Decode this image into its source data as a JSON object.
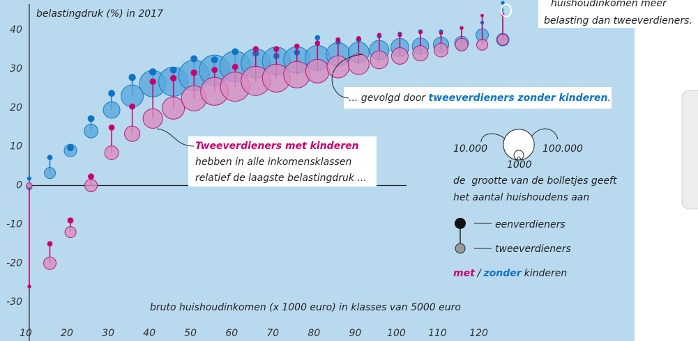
{
  "chart_data": {
    "type": "bubble",
    "y_label": "belastingdruk (%) in 2017",
    "x_label": "bruto huishoudinkomen (x 1000 euro) in klasses van 5000 euro",
    "x": [
      10,
      15,
      20,
      25,
      30,
      35,
      40,
      45,
      50,
      55,
      60,
      65,
      70,
      75,
      80,
      85,
      90,
      95,
      100,
      105,
      110,
      115,
      120,
      125
    ],
    "xlim": [
      10,
      157
    ],
    "ylim": [
      -40,
      47.7
    ],
    "xticks": [
      10,
      20,
      30,
      40,
      50,
      60,
      70,
      80,
      90,
      100,
      110,
      120
    ],
    "yticks": [
      -30,
      -20,
      -10,
      0,
      10,
      20,
      30,
      40
    ],
    "series": [
      {
        "color": "#5aa8dc",
        "stroke": "#1a7cc0",
        "values": [
          -0.4,
          3.2,
          9,
          14,
          19.4,
          23,
          26.2,
          26.7,
          28.3,
          29.6,
          30.6,
          31.4,
          32,
          32.3,
          32.8,
          33.7,
          34.2,
          34.8,
          35.5,
          35.8,
          36.2,
          36.6,
          38.7,
          37.5
        ],
        "sizes": [
          3300,
          13000,
          16500,
          20000,
          29000,
          52000,
          74000,
          90000,
          99000,
          99000,
          99000,
          90000,
          82000,
          74000,
          66000,
          59000,
          46000,
          40000,
          34000,
          29000,
          25000,
          20000,
          16500,
          16500
        ]
      },
      {
        "color": "#1173c3",
        "values": [
          1.8,
          7.2,
          9.7,
          17.2,
          23.7,
          27.8,
          29.2,
          29.7,
          32.6,
          32.3,
          34.4,
          34,
          33.3,
          34.2,
          38,
          36.9,
          37.5,
          38.4,
          39,
          39.6,
          39.6,
          40.5,
          41.9,
          47
        ],
        "sizes": [
          2000,
          3000,
          5000,
          5000,
          5000,
          5500,
          5500,
          5000,
          5000,
          5000,
          5000,
          4500,
          4000,
          4000,
          3000,
          3000,
          3000,
          2500,
          2000,
          2000,
          1800,
          1500,
          1500,
          1500
        ]
      },
      {
        "color": "#d98cbf",
        "stroke": "#b0207a",
        "values": [
          0,
          -20,
          -12,
          0,
          8.4,
          13.3,
          17.2,
          19.9,
          22.4,
          24.2,
          25.4,
          26.9,
          27.6,
          28.5,
          29.4,
          30.5,
          31.2,
          32.3,
          33.3,
          34,
          34.8,
          36.2,
          36.2,
          37.5
        ],
        "sizes": [
          3300,
          16500,
          13000,
          16500,
          20000,
          25000,
          40000,
          52000,
          66000,
          82000,
          90000,
          90000,
          82000,
          74000,
          59000,
          52000,
          46000,
          34000,
          29000,
          25000,
          20000,
          16500,
          13000,
          13000
        ]
      },
      {
        "color": "#c8006e",
        "values": [
          -26,
          -15,
          -9,
          2.3,
          14.9,
          20.3,
          26.7,
          27.6,
          29,
          29.7,
          30.5,
          35.1,
          35.1,
          35.8,
          36.6,
          37.5,
          37.8,
          38.7,
          38.7,
          39.4,
          39.2,
          40.5,
          43.7,
          44
        ],
        "sizes": [
          1500,
          3000,
          4000,
          4000,
          4000,
          4000,
          4500,
          4500,
          4500,
          4000,
          4000,
          3500,
          3500,
          3000,
          3000,
          2500,
          2500,
          2000,
          2000,
          1800,
          1500,
          1500,
          1200,
          1200
        ]
      }
    ],
    "annotations": [
      {
        "lines": [
          "huishoudinkomen meer",
          "belasting dan tweeverdieners."
        ]
      },
      {
        "parts": [
          "... gevolgd door ",
          "tweeverdieners zonder kinderen",
          "."
        ]
      },
      {
        "lines": [
          "Tweeverdieners met kinderen",
          "hebben in alle inkomensklassen",
          "relatief de laagste belastingdruk ..."
        ]
      }
    ],
    "legend": {
      "size_examples": [
        {
          "value": 10000,
          "label": "10.000"
        },
        1000,
        {
          "value": 100000,
          "label": "100.000"
        }
      ],
      "size_note": [
        "de  grootte van de bolletjes geeft",
        "het aantal huishoudens aan"
      ],
      "types": [
        "eenverdieners",
        "tweeverdieners"
      ],
      "children": [
        "met",
        "/",
        "zonder",
        "kinderen"
      ]
    }
  }
}
